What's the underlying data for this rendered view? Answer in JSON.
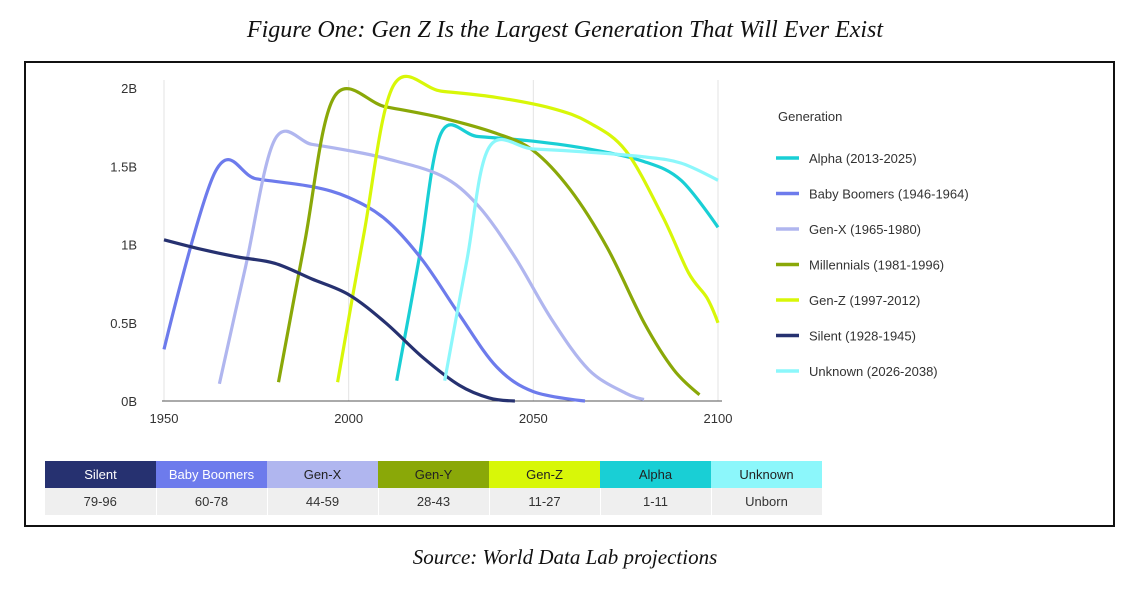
{
  "figure_title": "Figure One: Gen Z Is the Largest Generation That Will Ever Exist",
  "source": "Source: World Data Lab projections",
  "table": {
    "names": [
      "Silent",
      "Baby Boomers",
      "Gen-X",
      "Gen-Y",
      "Gen-Z",
      "Alpha",
      "Unknown"
    ],
    "ages": [
      "79-96",
      "60-78",
      "44-59",
      "28-43",
      "11-27",
      "1-11",
      "Unborn"
    ],
    "colors": [
      "#263170",
      "#6d7bec",
      "#b0b6ef",
      "#8aa808",
      "#d8f708",
      "#19cfd5",
      "#8cf7fb"
    ]
  },
  "chart_data": {
    "type": "line",
    "title": "",
    "xlabel": "",
    "ylabel": "",
    "xlim": [
      1950,
      2100
    ],
    "ylim": [
      0,
      2
    ],
    "x_ticks": [
      1950,
      2000,
      2050,
      2100
    ],
    "x_tick_labels": [
      "1950",
      "2000",
      "2050",
      "2100"
    ],
    "y_ticks": [
      0,
      0.5,
      1,
      1.5,
      2
    ],
    "y_tick_labels": [
      "0B",
      "0.5B",
      "1B",
      "1.5B",
      "2B"
    ],
    "grid": "vertical",
    "legend": {
      "title": "Generation",
      "placement": "right"
    },
    "series": [
      {
        "name": "Alpha (2013-2025)",
        "color": "#19cfd5",
        "points": [
          [
            2013,
            0.13
          ],
          [
            2019,
            0.9
          ],
          [
            2025,
            1.71
          ],
          [
            2035,
            1.69
          ],
          [
            2050,
            1.66
          ],
          [
            2065,
            1.61
          ],
          [
            2080,
            1.53
          ],
          [
            2090,
            1.41
          ],
          [
            2100,
            1.11
          ]
        ]
      },
      {
        "name": "Baby Boomers (1946-1964)",
        "color": "#6d7bec",
        "points": [
          [
            1950,
            0.33
          ],
          [
            1964,
            1.47
          ],
          [
            1975,
            1.42
          ],
          [
            1990,
            1.37
          ],
          [
            2000,
            1.3
          ],
          [
            2010,
            1.16
          ],
          [
            2020,
            0.9
          ],
          [
            2030,
            0.55
          ],
          [
            2040,
            0.22
          ],
          [
            2050,
            0.06
          ],
          [
            2064,
            0.0
          ]
        ]
      },
      {
        "name": "Gen-X (1965-1980)",
        "color": "#b0b6ef",
        "points": [
          [
            1965,
            0.11
          ],
          [
            1972,
            0.85
          ],
          [
            1980,
            1.67
          ],
          [
            1990,
            1.64
          ],
          [
            2000,
            1.6
          ],
          [
            2010,
            1.55
          ],
          [
            2025,
            1.44
          ],
          [
            2035,
            1.25
          ],
          [
            2045,
            0.92
          ],
          [
            2055,
            0.52
          ],
          [
            2065,
            0.2
          ],
          [
            2075,
            0.05
          ],
          [
            2080,
            0.01
          ]
        ]
      },
      {
        "name": "Millennials (1981-1996)",
        "color": "#8aa808",
        "points": [
          [
            1981,
            0.12
          ],
          [
            1988,
            1.0
          ],
          [
            1996,
            1.94
          ],
          [
            2010,
            1.88
          ],
          [
            2025,
            1.81
          ],
          [
            2040,
            1.71
          ],
          [
            2050,
            1.6
          ],
          [
            2060,
            1.35
          ],
          [
            2070,
            0.98
          ],
          [
            2080,
            0.5
          ],
          [
            2088,
            0.2
          ],
          [
            2095,
            0.04
          ]
        ]
      },
      {
        "name": "Gen-Z (1997-2012)",
        "color": "#d8f708",
        "points": [
          [
            1997,
            0.12
          ],
          [
            2004,
            1.05
          ],
          [
            2012,
            2.01
          ],
          [
            2025,
            1.98
          ],
          [
            2040,
            1.94
          ],
          [
            2055,
            1.87
          ],
          [
            2065,
            1.78
          ],
          [
            2075,
            1.6
          ],
          [
            2085,
            1.18
          ],
          [
            2092,
            0.82
          ],
          [
            2097,
            0.66
          ],
          [
            2100,
            0.5
          ]
        ]
      },
      {
        "name": "Silent (1928-1945)",
        "color": "#263170",
        "points": [
          [
            1950,
            1.03
          ],
          [
            1960,
            0.97
          ],
          [
            1970,
            0.92
          ],
          [
            1980,
            0.88
          ],
          [
            1990,
            0.78
          ],
          [
            2000,
            0.68
          ],
          [
            2010,
            0.5
          ],
          [
            2020,
            0.28
          ],
          [
            2030,
            0.1
          ],
          [
            2038,
            0.02
          ],
          [
            2045,
            0.0
          ]
        ]
      },
      {
        "name": "Unknown (2026-2038)",
        "color": "#8cf7fb",
        "points": [
          [
            2026,
            0.13
          ],
          [
            2032,
            0.9
          ],
          [
            2038,
            1.62
          ],
          [
            2050,
            1.61
          ],
          [
            2065,
            1.59
          ],
          [
            2080,
            1.56
          ],
          [
            2090,
            1.52
          ],
          [
            2100,
            1.41
          ]
        ]
      }
    ]
  }
}
